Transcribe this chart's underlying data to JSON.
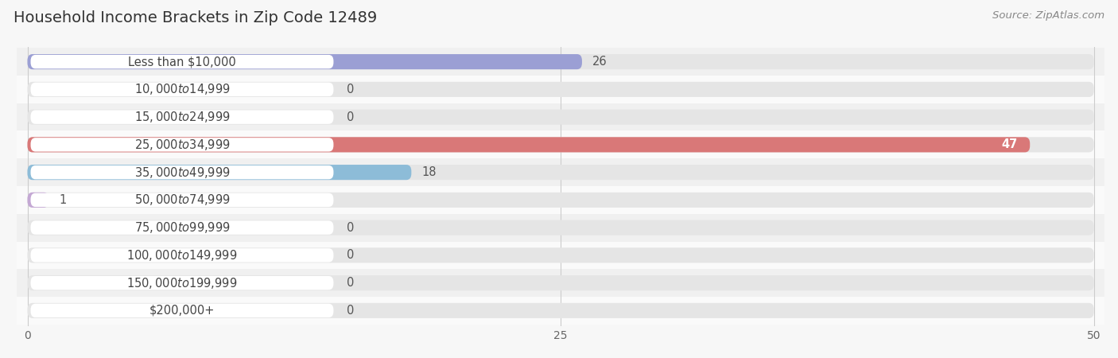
{
  "title": "Household Income Brackets in Zip Code 12489",
  "source": "Source: ZipAtlas.com",
  "categories": [
    "Less than $10,000",
    "$10,000 to $14,999",
    "$15,000 to $24,999",
    "$25,000 to $34,999",
    "$35,000 to $49,999",
    "$50,000 to $74,999",
    "$75,000 to $99,999",
    "$100,000 to $149,999",
    "$150,000 to $199,999",
    "$200,000+"
  ],
  "values": [
    26,
    0,
    0,
    47,
    18,
    1,
    0,
    0,
    0,
    0
  ],
  "bar_colors": [
    "#9b9fd4",
    "#f4a8bc",
    "#f7c99a",
    "#d97878",
    "#8dbcd8",
    "#c4a8d4",
    "#7eccc4",
    "#b4b4e4",
    "#f49ab4",
    "#f7c99a"
  ],
  "xlim": [
    0,
    50
  ],
  "xticks": [
    0,
    25,
    50
  ],
  "background_color": "#f7f7f7",
  "bar_bg_color": "#e5e5e5",
  "row_bg_colors": [
    "#f0f0f0",
    "#fafafa"
  ],
  "title_fontsize": 14,
  "label_fontsize": 10.5,
  "value_fontsize": 10.5,
  "source_fontsize": 9.5,
  "bar_height": 0.55
}
